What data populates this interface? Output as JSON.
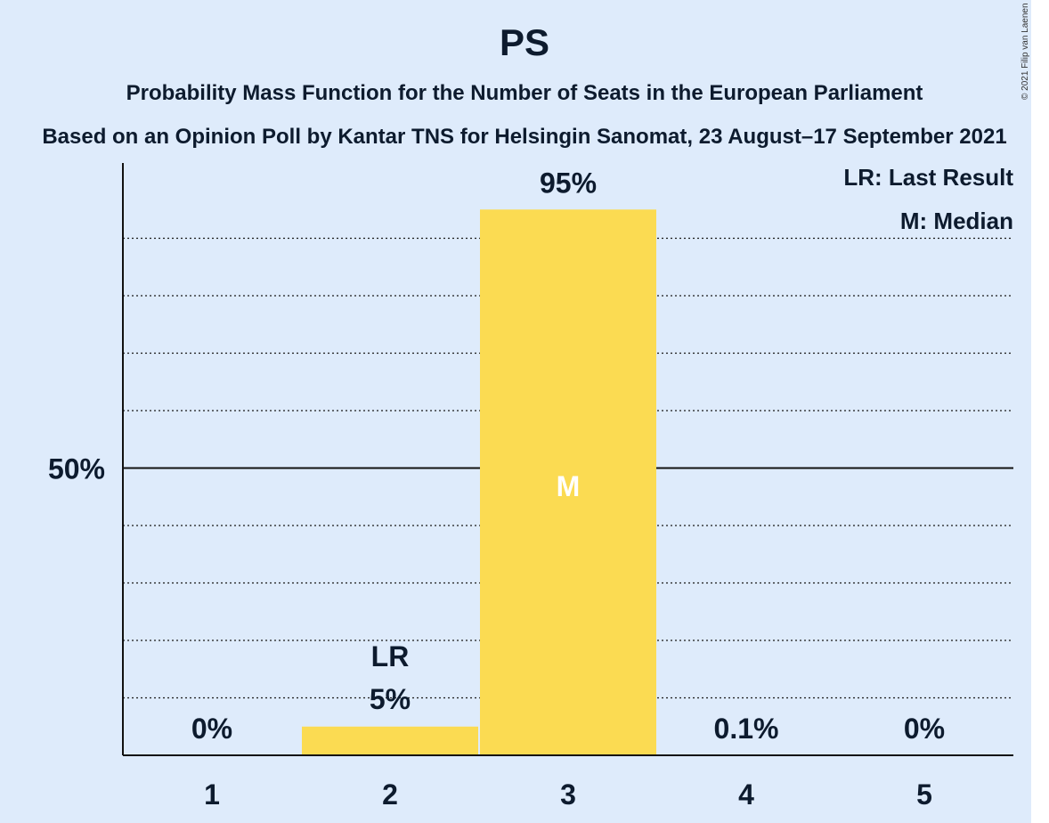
{
  "title": "PS",
  "subtitle": "Probability Mass Function for the Number of Seats in the European Parliament",
  "subtitle2": "Based on an Opinion Poll by Kantar TNS for Helsingin Sanomat, 23 August–17 September 2021",
  "copyright": "© 2021 Filip van Laenen",
  "legend": {
    "lr": "LR: Last Result",
    "m": "M: Median"
  },
  "colors": {
    "background": "#deebfb",
    "bar": "#fbdb52",
    "text": "#0d1b2e"
  },
  "chart_data": {
    "type": "bar",
    "categories": [
      "1",
      "2",
      "3",
      "4",
      "5"
    ],
    "values": [
      0,
      5,
      95,
      0.1,
      0
    ],
    "data_labels": [
      "0%",
      "5%",
      "95%",
      "0.1%",
      "0%"
    ],
    "ylim": [
      0,
      100
    ],
    "ytick_label": "50%",
    "ytick_value": 50,
    "gridlines": [
      10,
      20,
      30,
      40,
      60,
      70,
      80,
      90
    ],
    "last_result_category": "2",
    "last_result_label": "LR",
    "median_category": "3",
    "median_label": "M",
    "legend_position": "top-right"
  }
}
